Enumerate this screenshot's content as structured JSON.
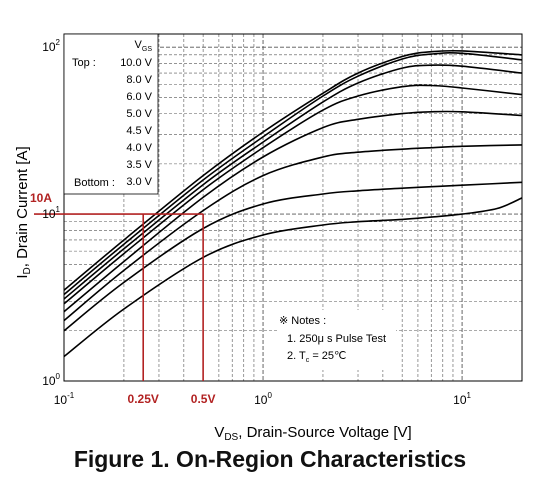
{
  "caption": "Figure 1. On-Region Characteristics",
  "colors": {
    "curve": "#000000",
    "annotation": "#b22222",
    "grid": "#555555",
    "background": "#ffffff"
  },
  "chart_data": {
    "type": "line",
    "title": "",
    "xscale": "log",
    "yscale": "log",
    "xlim": [
      0.1,
      20
    ],
    "ylim": [
      1,
      120
    ],
    "grid": true,
    "xlabel": {
      "main": "V",
      "sub": "DS",
      "rest": ", Drain-Source Voltage [V]"
    },
    "ylabel": {
      "main": "I",
      "sub": "D",
      "rest": ", Drain Current [A]"
    },
    "xticks": [
      {
        "value": 0.1,
        "base": "10",
        "exp": "-1"
      },
      {
        "value": 1,
        "base": "10",
        "exp": "0"
      },
      {
        "value": 10,
        "base": "10",
        "exp": "1"
      }
    ],
    "yticks": [
      {
        "value": 1,
        "base": "10",
        "exp": "0"
      },
      {
        "value": 10,
        "base": "10",
        "exp": "1"
      },
      {
        "value": 100,
        "base": "10",
        "exp": "2"
      }
    ],
    "legend": {
      "header": {
        "main": "V",
        "sub": "GS"
      },
      "top_label": "Top :",
      "bottom_label": "Bottom :",
      "entries": [
        "10.0 V",
        "8.0 V",
        "6.0 V",
        "5.0 V",
        "4.5 V",
        "4.0 V",
        "3.5 V",
        "3.0 V"
      ]
    },
    "series": [
      {
        "name": "10.0 V",
        "x": [
          0.1,
          0.2,
          0.5,
          1,
          2,
          3,
          5,
          7,
          10,
          20
        ],
        "y": [
          3.5,
          7,
          17,
          31,
          53,
          70,
          88,
          94,
          95,
          90
        ]
      },
      {
        "name": "8.0 V",
        "x": [
          0.1,
          0.2,
          0.5,
          1,
          2,
          3,
          5,
          7,
          10,
          20
        ],
        "y": [
          3.3,
          6.6,
          16,
          29,
          51,
          67,
          85,
          91,
          92,
          84
        ]
      },
      {
        "name": "6.0 V",
        "x": [
          0.1,
          0.2,
          0.5,
          1,
          2,
          3,
          5,
          7,
          10,
          20
        ],
        "y": [
          3.1,
          6.2,
          15,
          27,
          47,
          61,
          75,
          78,
          77,
          70
        ]
      },
      {
        "name": "5.0 V",
        "x": [
          0.1,
          0.2,
          0.5,
          1,
          2,
          3,
          5,
          7,
          10,
          20
        ],
        "y": [
          2.9,
          5.8,
          14,
          25,
          42,
          51,
          58,
          59,
          57,
          52
        ]
      },
      {
        "name": "4.5 V",
        "x": [
          0.1,
          0.2,
          0.5,
          1,
          2,
          3,
          5,
          7,
          10,
          20
        ],
        "y": [
          2.6,
          5.2,
          12.6,
          22,
          33,
          37,
          40,
          41,
          41,
          39
        ]
      },
      {
        "name": "4.0 V",
        "x": [
          0.1,
          0.2,
          0.5,
          1,
          2,
          3,
          5,
          7,
          10,
          20
        ],
        "y": [
          2.3,
          4.6,
          10.5,
          17,
          22,
          23.5,
          24.5,
          25,
          25.5,
          26
        ]
      },
      {
        "name": "3.5 V",
        "x": [
          0.1,
          0.2,
          0.5,
          1,
          2,
          3,
          5,
          7,
          10,
          20
        ],
        "y": [
          2.0,
          3.9,
          8.2,
          11.5,
          13.2,
          13.8,
          14.3,
          14.6,
          14.9,
          15.5
        ]
      },
      {
        "name": "3.0 V",
        "x": [
          0.1,
          0.2,
          0.5,
          1,
          2,
          3,
          5,
          7,
          10,
          15,
          20
        ],
        "y": [
          1.4,
          2.7,
          5.5,
          7.5,
          8.6,
          9.0,
          9.3,
          9.6,
          10.0,
          10.8,
          12.5
        ]
      }
    ],
    "annotations": {
      "level_y": 10,
      "level_label": "10A",
      "marks": [
        {
          "x": 0.25,
          "label": "0.25V"
        },
        {
          "x": 0.5,
          "label": "0.5V"
        }
      ]
    },
    "notes": {
      "title": "※ Notes :",
      "line1": "1. 250μ s Pulse Test",
      "line2_prefix": "2. T",
      "line2_sub": "c",
      "line2_suffix": " = 25℃"
    }
  }
}
